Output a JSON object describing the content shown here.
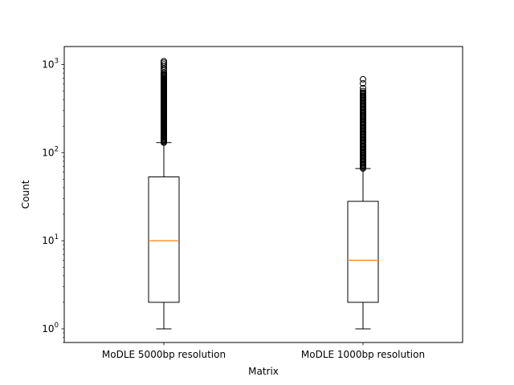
{
  "chart_data": {
    "type": "box",
    "title": "",
    "xlabel": "Matrix",
    "ylabel": "Count",
    "yscale": "log",
    "ylim": [
      0.7,
      1600
    ],
    "yticks": [
      {
        "value": 1,
        "base": "10",
        "exp": "0"
      },
      {
        "value": 10,
        "base": "10",
        "exp": "1"
      },
      {
        "value": 100,
        "base": "10",
        "exp": "2"
      },
      {
        "value": 1000,
        "base": "10",
        "exp": "3"
      }
    ],
    "grid": false,
    "median_color": "#ff7f0e",
    "box_color": "#000000",
    "categories": [
      "MoDLE 5000bp resolution",
      "MoDLE 1000bp resolution"
    ],
    "boxes": [
      {
        "label": "MoDLE 5000bp resolution",
        "whisker_low": 1,
        "q1": 2,
        "median": 10,
        "q3": 53,
        "whisker_high": 130,
        "outlier_range": [
          130,
          780
        ],
        "outliers_top": [
          810,
          860,
          900,
          950,
          1000,
          1050,
          1090
        ]
      },
      {
        "label": "MoDLE 1000bp resolution",
        "whisker_low": 1,
        "q1": 2,
        "median": 6,
        "q3": 28,
        "whisker_high": 66,
        "outlier_range": [
          66,
          480
        ],
        "outliers_top": [
          500,
          540,
          610,
          680
        ]
      }
    ]
  }
}
